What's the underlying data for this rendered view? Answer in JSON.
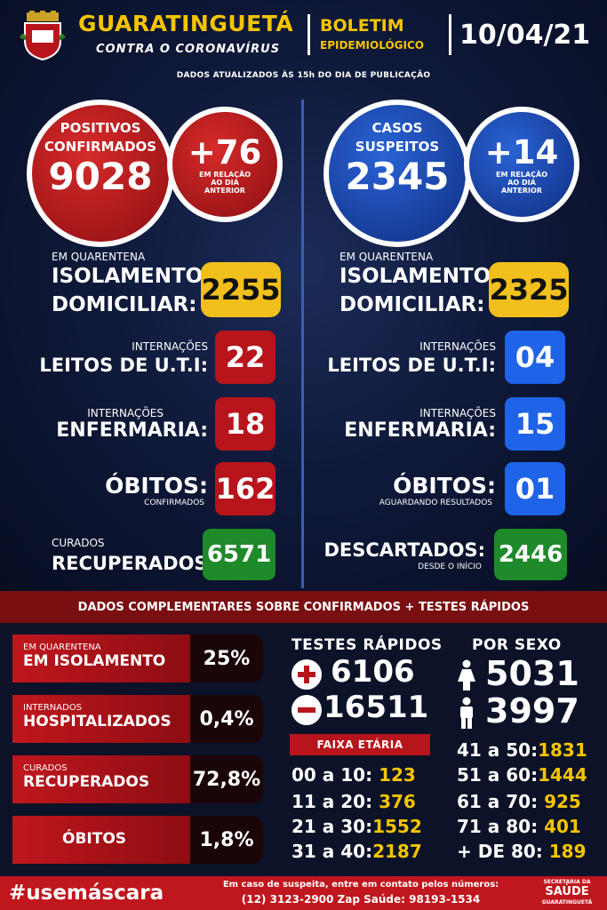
{
  "header": {
    "city": "GUARATINGUETÁ",
    "subtitle": "CONTRA O CORONAVÍRUS",
    "bulletin_line1": "BOLETIM",
    "bulletin_line2": "EPIDEMIOLÓGICO",
    "date": "10/04/21",
    "updated": "DADOS ATUALIZADOS ÀS 15h DO DIA DE PUBLICAÇÃO"
  },
  "confirmed": {
    "label1": "POSITIVOS",
    "label2": "CONFIRMADOS",
    "value": "9028",
    "delta": "+76",
    "delta_note1": "EM RELAÇÃO",
    "delta_note2": "AO DIA",
    "delta_note3": "ANTERIOR",
    "quarantine_small": "EM QUARENTENA",
    "quarantine_big1": "ISOLAMENTO",
    "quarantine_big2": "DOMICILIAR:",
    "quarantine_value": "2255",
    "uti_small": "INTERNAÇÕES",
    "uti_big": "LEITOS DE U.T.I:",
    "uti_value": "22",
    "ward_small": "INTERNAÇÕES",
    "ward_big": "ENFERMARIA:",
    "ward_value": "18",
    "deaths_big": "ÓBITOS:",
    "deaths_small": "CONFIRMADOS",
    "deaths_value": "162",
    "cured_small": "CURADOS",
    "cured_big": "RECUPERADOS:",
    "cured_value": "6571"
  },
  "suspected": {
    "label1": "CASOS",
    "label2": "SUSPEITOS",
    "value": "2345",
    "delta": "+14",
    "delta_note1": "EM RELAÇÃO",
    "delta_note2": "AO DIA",
    "delta_note3": "ANTERIOR",
    "quarantine_small": "EM QUARENTENA",
    "quarantine_big1": "ISOLAMENTO",
    "quarantine_big2": "DOMICILIAR:",
    "quarantine_value": "2325",
    "uti_small": "INTERNAÇÕES",
    "uti_big": "LEITOS DE U.T.I:",
    "uti_value": "04",
    "ward_small": "INTERNAÇÕES",
    "ward_big": "ENFERMARIA:",
    "ward_value": "15",
    "deaths_big": "ÓBITOS:",
    "deaths_small": "AGUARDANDO RESULTADOS",
    "deaths_value": "01",
    "discarded_big": "DESCARTADOS:",
    "discarded_small": "DESDE O INÍCIO",
    "discarded_value": "2446"
  },
  "complementary": {
    "title": "DADOS COMPLEMENTARES SOBRE CONFIRMADOS + TESTES RÁPIDOS",
    "isolation_small": "EM QUARENTENA",
    "isolation_big": "EM ISOLAMENTO",
    "isolation_value": "25%",
    "hospital_small": "INTERNADOS",
    "hospital_big": "HOSPITALIZADOS",
    "hospital_value": "0,4%",
    "recovered_small": "CURADOS",
    "recovered_big": "RECUPERADOS",
    "recovered_value": "72,8%",
    "deaths_big": "ÓBITOS",
    "deaths_value": "1,8%"
  },
  "rapid_tests": {
    "title": "TESTES RÁPIDOS",
    "positive": "6106",
    "negative": "16511"
  },
  "age": {
    "title": "FAIXA ETÁRIA",
    "ranges": [
      {
        "label": "00 a 10:",
        "value": "123"
      },
      {
        "label": "11 a 20:",
        "value": "376"
      },
      {
        "label": "21 a 30:",
        "value": "1552"
      },
      {
        "label": "31 a 40:",
        "value": "2187"
      },
      {
        "label": "41 a 50:",
        "value": "1831"
      },
      {
        "label": "51 a 60:",
        "value": "1444"
      },
      {
        "label": "61 a 70:",
        "value": "925"
      },
      {
        "label": "71 a 80:",
        "value": "401"
      },
      {
        "label": "+ DE 80:",
        "value": "189"
      }
    ]
  },
  "sex": {
    "title": "POR SEXO",
    "female": "5031",
    "male": "3997"
  },
  "footer": {
    "hashtag": "#usemáscara",
    "contact_line1": "Em caso de suspeita, entre em contato pelos números:",
    "contact_line2": "(12) 3123-2900 Zap Saúde: 98193-1534",
    "sec_line1": "SECRETARIA DA",
    "sec_line2": "SAÚDE",
    "sec_line3": "GUARATINGUETÁ"
  },
  "colors": {
    "yellow": "#f5c400",
    "red": "#b8141b",
    "blue": "#1f63e8",
    "green": "#1e8a2a",
    "navy": "#0b1530"
  }
}
